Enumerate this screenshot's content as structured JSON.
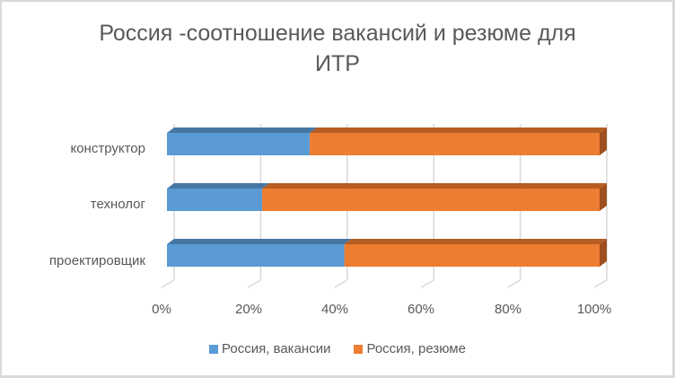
{
  "chart_data": {
    "type": "bar",
    "orientation": "horizontal",
    "stacked": "percent",
    "style": "3d",
    "title": "Россия -соотношение вакансий и резюме для ИТР",
    "title_lines": [
      "Россия -соотношение вакансий и резюме для",
      "ИТР"
    ],
    "categories": [
      "конструктор",
      "технолог",
      "проектировщик"
    ],
    "series": [
      {
        "name": "Россия, вакансии",
        "color": "#5b9bd5",
        "values": [
          33,
          22,
          41
        ]
      },
      {
        "name": "Россия, резюме",
        "color": "#ed7d31",
        "values": [
          67,
          78,
          59
        ]
      }
    ],
    "xaxis": {
      "ticks": [
        "0%",
        "20%",
        "40%",
        "60%",
        "80%",
        "100%"
      ],
      "range": [
        0,
        100
      ]
    },
    "grid": true,
    "legend_position": "bottom"
  },
  "legend": {
    "items": [
      {
        "label": "Россия, вакансии",
        "color": "#5b9bd5"
      },
      {
        "label": "Россия, резюме",
        "color": "#ed7d31"
      }
    ]
  }
}
